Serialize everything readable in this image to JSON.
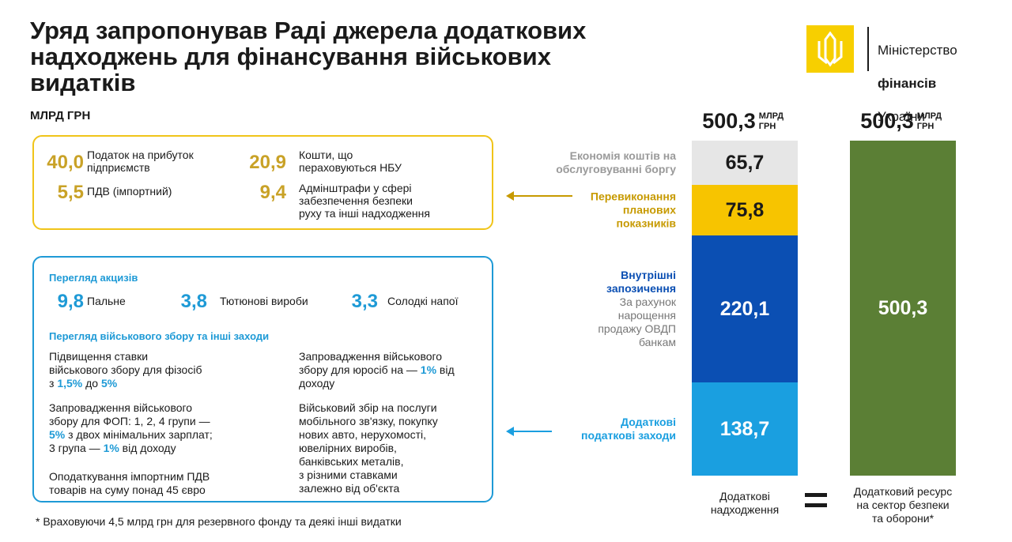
{
  "header": {
    "title": "Уряд запропонував Раді джерела додаткових\nнадходжень для фінансування військових\nвидатків",
    "ministry": [
      "Міністерство",
      "фінансів",
      "України"
    ]
  },
  "income_box": {
    "items": [
      {
        "value": "40,0",
        "label": "Податок на прибуток\nпідприємств"
      },
      {
        "value": "20,9",
        "label": "Кошти, що\nпераховуються НБУ"
      },
      {
        "value": "5,5",
        "label": "ПДВ (імпортний)"
      },
      {
        "value": "9,4",
        "label": "Адмінштрафи у сфері\nзабезпечення безпеки\nруху та інші надходження"
      }
    ]
  },
  "measures_box": {
    "excise_heading": "Перегляд акцизів",
    "excise_items": [
      {
        "value": "9,8",
        "label": "Пальне"
      },
      {
        "value": "3,8",
        "label": "Тютюнові вироби"
      },
      {
        "value": "3,3",
        "label": "Солодкі напої"
      }
    ],
    "military_heading": "Перегляд військового збору та інші заходи",
    "notes": [
      [
        "Підвищення ставки\nвійськового збору для фізосіб\nз ",
        {
          "accent": "1,5%"
        },
        " до ",
        {
          "accent": "5%"
        }
      ],
      [
        "Запровадження військового\nзбору для юросіб на — ",
        {
          "accent": "1%"
        },
        " від\nдоходу"
      ],
      [
        "Запровадження військового\nзбору для ФОП: 1, 2, 4 групи —\n",
        {
          "accent": "5%"
        },
        " з двох мінімальних зарплат;\n3 група — ",
        {
          "accent": "1%"
        },
        " від доходу"
      ],
      [
        "Військовий збір на послуги\nмобільного зв'язку, покупку\nнових авто, нерухомості,\nювелірних виробів,\nбанківських металів,\nз різними ставками\nзалежно від об'єкта"
      ],
      [
        "Оподаткування імпортним ПДВ\nтоварів на суму понад 45 євро"
      ]
    ]
  },
  "footnote": "* Враховуючи 4,5 млрд грн для резервного фонду та деякі інші видатки",
  "chart_data": {
    "type": "bar",
    "stacked": true,
    "unit": "МЛРД ГРН",
    "categories": [
      "Додаткові\nнадходження",
      "Додатковий ресурс\nна сектор безпеки\nта оборони*"
    ],
    "total_labels": [
      "500,3",
      "500,3"
    ],
    "ylim": [
      0,
      500.3
    ],
    "series": [
      {
        "name": "Додаткові\nподаткові заходи",
        "color": "#1a9fe0",
        "label_color": "#1a9fe0",
        "text_color": "#ffffff",
        "values": [
          138.7,
          null
        ],
        "value_labels": [
          "138,7",
          null
        ]
      },
      {
        "name": "Внутрішні\nзапозичення",
        "note": "За рахунок\nнарощення\nпродажу ОВДП\nбанкам",
        "color": "#0b4fb3",
        "label_color": "#0b4fb3",
        "text_color": "#ffffff",
        "values": [
          220.1,
          null
        ],
        "value_labels": [
          "220,1",
          null
        ]
      },
      {
        "name": "Перевиконання\nпланових\nпоказників",
        "color": "#f7c400",
        "label_color": "#c79a00",
        "text_color": "#1a1a1a",
        "values": [
          75.8,
          null
        ],
        "value_labels": [
          "75,8",
          null
        ]
      },
      {
        "name": "Економія коштів на\nобслуговуванні боргу",
        "color": "#e6e6e6",
        "label_color": "#9a9a9a",
        "text_color": "#1a1a1a",
        "values": [
          65.7,
          null
        ],
        "value_labels": [
          "65,7",
          null
        ]
      },
      {
        "color": "#5b7f35",
        "text_color": "#ffffff",
        "values": [
          null,
          500.3
        ],
        "value_labels": [
          null,
          "500,3"
        ]
      }
    ]
  }
}
